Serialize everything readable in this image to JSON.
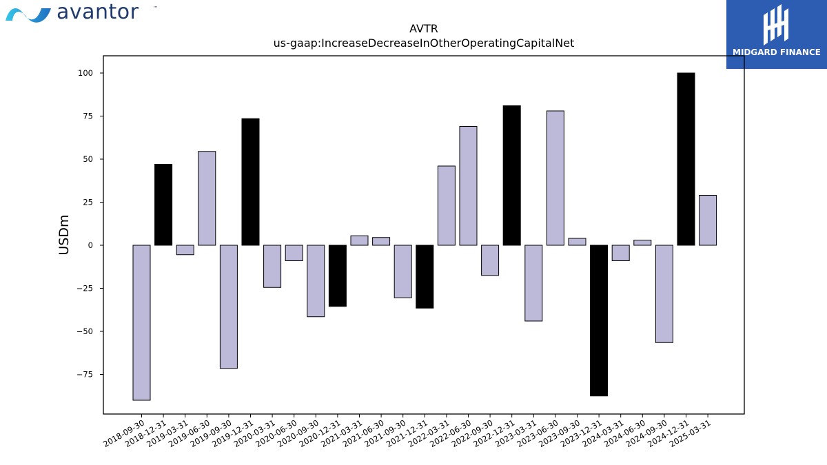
{
  "brand_left": {
    "name": "avantor",
    "tm": "™",
    "color": "#1f3b6e"
  },
  "brand_right": {
    "name": "MIDGARD FINANCE",
    "bg": "#2d5db3"
  },
  "chart_data": {
    "type": "bar",
    "title": "AVTR",
    "subtitle": "us-gaap:IncreaseDecreaseInOtherOperatingCapitalNet",
    "ylabel": "USDm",
    "xlabel": "",
    "ylim": [
      -98,
      110
    ],
    "yticks": [
      100,
      75,
      50,
      25,
      0,
      -25,
      -50,
      -75
    ],
    "grid": false,
    "categories": [
      "2018-09-30",
      "2018-12-31",
      "2019-03-31",
      "2019-06-30",
      "2019-09-30",
      "2019-12-31",
      "2020-03-31",
      "2020-06-30",
      "2020-09-30",
      "2020-12-31",
      "2021-03-31",
      "2021-06-30",
      "2021-09-30",
      "2021-12-31",
      "2022-03-31",
      "2022-06-30",
      "2022-09-30",
      "2022-12-31",
      "2023-03-31",
      "2023-06-30",
      "2023-09-30",
      "2023-12-31",
      "2024-03-31",
      "2024-06-30",
      "2024-09-30",
      "2024-12-31",
      "2025-03-31"
    ],
    "values": [
      -90,
      47,
      -5.5,
      54.5,
      -71.5,
      73.5,
      -24.5,
      -9,
      -41.5,
      -35.5,
      5.5,
      4.5,
      -30.5,
      -36.5,
      46,
      69,
      -17.5,
      81,
      -44,
      78,
      4,
      -87.5,
      -9,
      3,
      -56.5,
      100,
      29
    ],
    "colors": {
      "quarter": "#bdbad9",
      "year_end": "#000000",
      "edge": "#000000"
    }
  }
}
